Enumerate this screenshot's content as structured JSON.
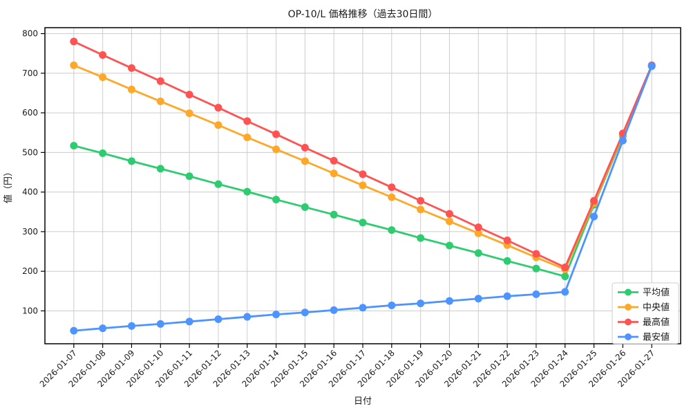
{
  "chart_data": {
    "type": "line",
    "title": "OP-10/L 価格推移（過去30日間）",
    "xlabel": "日付",
    "ylabel": "値（円）",
    "x": [
      "2026-01-07",
      "2026-01-08",
      "2026-01-09",
      "2026-01-10",
      "2026-01-11",
      "2026-01-12",
      "2026-01-13",
      "2026-01-14",
      "2026-01-15",
      "2026-01-16",
      "2026-01-17",
      "2026-01-18",
      "2026-01-19",
      "2026-01-20",
      "2026-01-21",
      "2026-01-22",
      "2026-01-23",
      "2026-01-24",
      "2026-01-25",
      "2026-01-26",
      "2026-01-27"
    ],
    "ylim": [
      17,
      815
    ],
    "yticks": [
      100,
      200,
      300,
      400,
      500,
      600,
      700,
      800
    ],
    "grid": true,
    "grid_color": "#cccccc",
    "legend_position": "lower right",
    "series": [
      {
        "name": "平均値",
        "color": "#2ecc71",
        "values": [
          517,
          498,
          478,
          459,
          440,
          420,
          401,
          381,
          362,
          343,
          323,
          304,
          284,
          265,
          246,
          226,
          207,
          187,
          368,
          541,
          718
        ]
      },
      {
        "name": "中央値",
        "color": "#ffa726",
        "values": [
          720,
          690,
          659,
          629,
          599,
          569,
          538,
          508,
          478,
          447,
          417,
          387,
          356,
          326,
          296,
          266,
          235,
          205,
          372,
          544,
          719
        ]
      },
      {
        "name": "最高値",
        "color": "#ff5252",
        "values": [
          780,
          746,
          713,
          680,
          646,
          613,
          579,
          546,
          512,
          479,
          445,
          412,
          378,
          345,
          311,
          278,
          244,
          210,
          378,
          548,
          720
        ]
      },
      {
        "name": "最安値",
        "color": "#4d94ff",
        "values": [
          50,
          56,
          62,
          67,
          73,
          79,
          85,
          91,
          96,
          102,
          108,
          114,
          119,
          125,
          131,
          137,
          142,
          148,
          338,
          530,
          718
        ]
      }
    ]
  }
}
